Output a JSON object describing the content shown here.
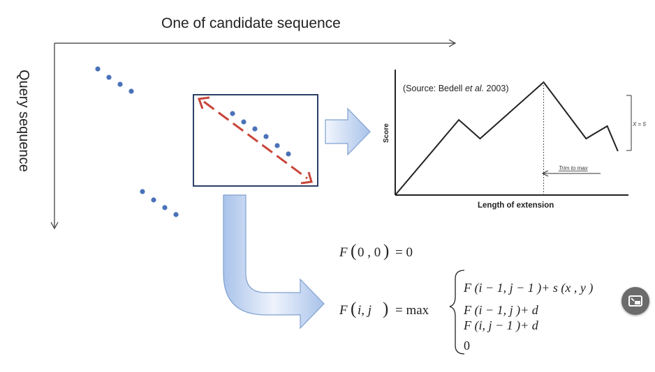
{
  "axes": {
    "top_label": "One of candidate sequence",
    "side_label": "Query sequence"
  },
  "inset_chart": {
    "source_prefix": "(Source: Bedell ",
    "source_et_al": "et al.",
    "source_year": " 2003)",
    "ylabel": "Score",
    "xlabel": "Length of extension",
    "x_annotation": "X = 5",
    "trim_label": "Trim to max"
  },
  "chart_data": {
    "type": "line",
    "title": "",
    "xlabel": "Length of extension",
    "ylabel": "Score",
    "x": [
      0,
      3,
      4,
      7,
      9,
      10,
      10.5
    ],
    "y": [
      0,
      6,
      4.5,
      9,
      4.5,
      5.5,
      3.5
    ],
    "xlim": [
      0,
      11
    ],
    "ylim": [
      0,
      10
    ],
    "grid": false,
    "annotations": [
      "X = 5",
      "Trim to max"
    ]
  },
  "formula": {
    "base_lhs_F": "F",
    "base_args": "0 , 0",
    "base_rhs": "=  0",
    "rec_lhs_F": "F",
    "rec_args": "i,  j",
    "rec_eq": "=  max",
    "case1": "F (i − 1,  j − 1 )+  s (x  ,  y  )",
    "case2": "F (i − 1,  j )+  d",
    "case3": "F (i,  j − 1 )+  d",
    "case4": "0"
  },
  "colors": {
    "dots": "#4a72b8",
    "red_arrow": "#c9453a",
    "block_arrow_fill": "#c7d9f4",
    "block_arrow_stroke": "#7fa0cf",
    "box_stroke": "#2b3f66"
  },
  "overlay": {
    "pip_icon": "picture-in-picture-icon"
  }
}
